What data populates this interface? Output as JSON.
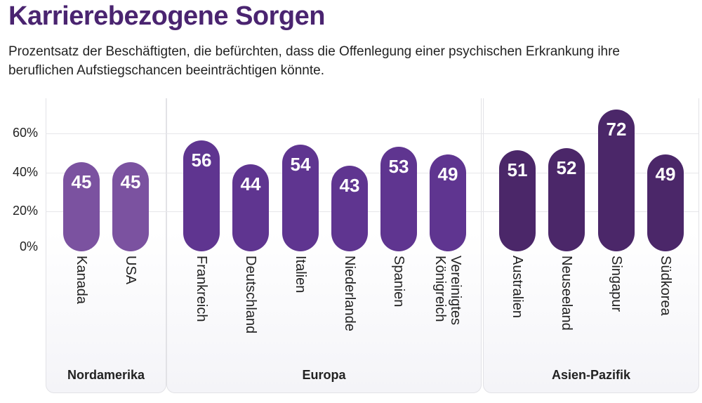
{
  "chart_data": {
    "type": "bar",
    "title": "Karrierebezogene Sorgen",
    "subtitle": "Prozentsatz der Beschäftigten, die befürchten, dass die Offenlegung einer psychischen Erkrankung ihre beruflichen Aufstiegschancen beeinträchtigen könnte.",
    "ylim": [
      0,
      72
    ],
    "yticks": [
      "0%",
      "20%",
      "40%",
      "60%"
    ],
    "grid": true,
    "groups": [
      {
        "name": "Nordamerika",
        "color": "#7b52a0",
        "categories": [
          "Kanada",
          "USA"
        ],
        "values": [
          45,
          45
        ]
      },
      {
        "name": "Europa",
        "color": "#5f3590",
        "categories": [
          "Frankreich",
          "Deutschland",
          "Italien",
          "Niederlande",
          "Spanien",
          "Vereinigtes Königreich"
        ],
        "values": [
          56,
          44,
          54,
          43,
          53,
          49
        ]
      },
      {
        "name": "Asien-Pazifik",
        "color": "#4b2769",
        "categories": [
          "Australien",
          "Neuseeland",
          "Singapur",
          "Südkorea"
        ],
        "values": [
          51,
          52,
          72,
          49
        ]
      }
    ]
  }
}
